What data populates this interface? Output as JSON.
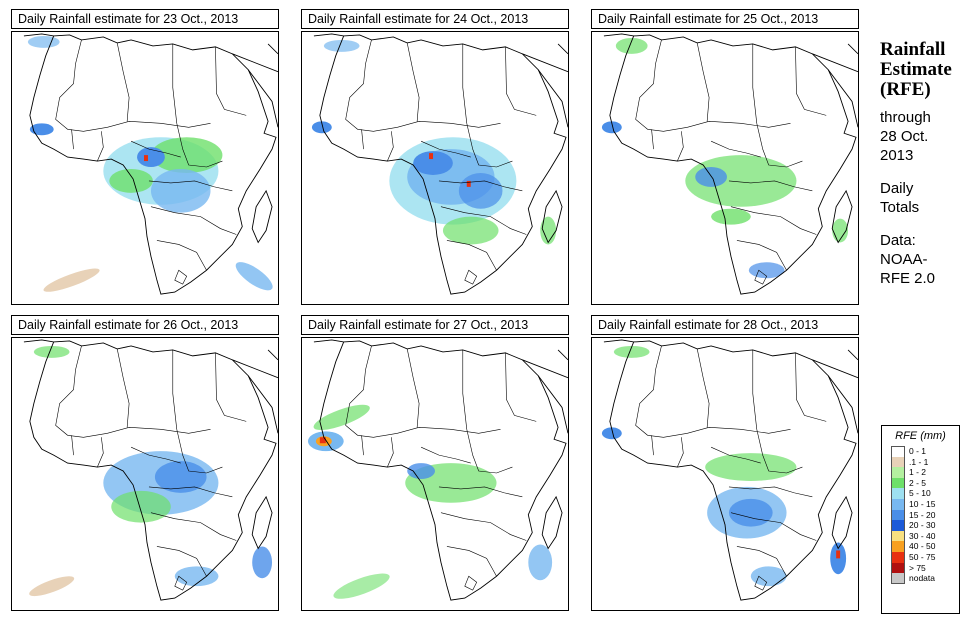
{
  "panels": [
    {
      "title": "Daily Rainfall estimate for  23 Oct., 2013"
    },
    {
      "title": "Daily Rainfall estimate for  24 Oct., 2013"
    },
    {
      "title": "Daily Rainfall estimate for  25 Oct., 2013"
    },
    {
      "title": "Daily Rainfall estimate for  26 Oct., 2013"
    },
    {
      "title": "Daily Rainfall estimate for  27 Oct., 2013"
    },
    {
      "title": "Daily Rainfall estimate for  28 Oct., 2013"
    }
  ],
  "side": {
    "title_line1": "Rainfall",
    "title_line2": "Estimate",
    "title_line3": "(RFE)",
    "through": "through",
    "date_line1": "28 Oct.",
    "date_line2": "2013",
    "daily": "Daily",
    "totals": "Totals",
    "data_label": "Data:",
    "source_line1": "NOAA-",
    "source_line2": "RFE 2.0"
  },
  "legend": {
    "title": "RFE (mm)",
    "items": [
      {
        "label": "0 - 1",
        "color": "#ffffff"
      },
      {
        "label": ".1 - 1",
        "color": "#e8d2b8"
      },
      {
        "label": "1 - 2",
        "color": "#b4f0a0"
      },
      {
        "label": "2 - 5",
        "color": "#6ee06a"
      },
      {
        "label": "5 - 10",
        "color": "#9ee0f0"
      },
      {
        "label": "10 - 15",
        "color": "#78b8f0"
      },
      {
        "label": "15 - 20",
        "color": "#4a8ee8"
      },
      {
        "label": "20 - 30",
        "color": "#1c5ad8"
      },
      {
        "label": "30 - 40",
        "color": "#f8e080"
      },
      {
        "label": "40 - 50",
        "color": "#f8a020"
      },
      {
        "label": "50 - 75",
        "color": "#e83010"
      },
      {
        "label": "> 75",
        "color": "#b01010"
      },
      {
        "label": "nodata",
        "color": "#c8c8c8"
      }
    ]
  }
}
